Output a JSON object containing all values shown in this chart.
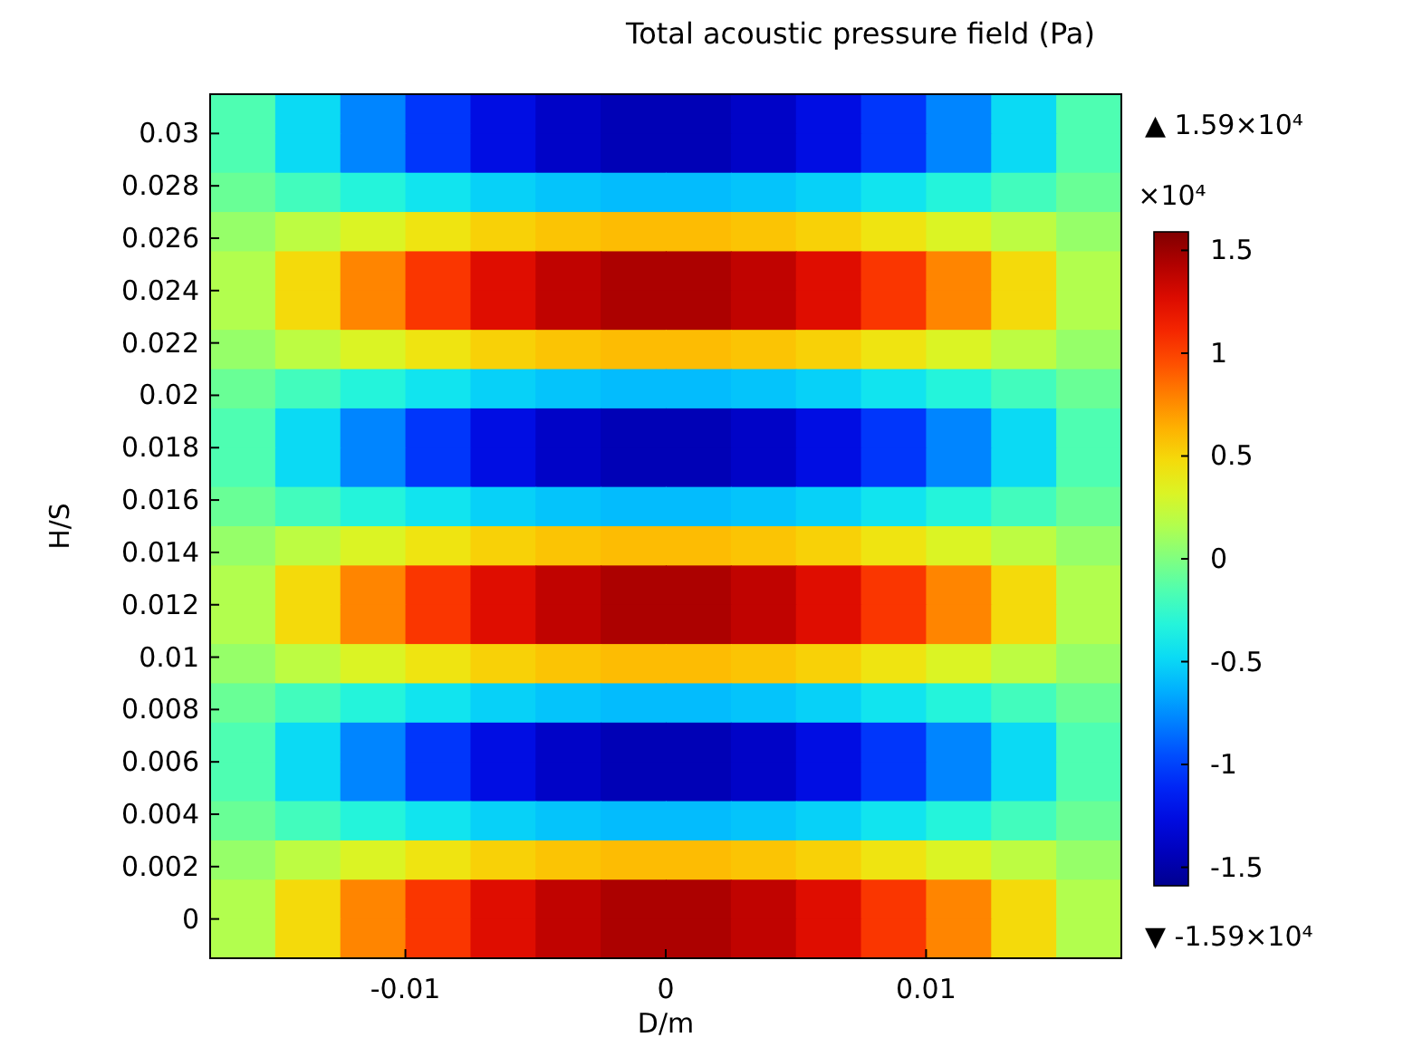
{
  "chart_data": {
    "type": "heatmap",
    "title": "Total acoustic pressure field (Pa)",
    "xlabel": "D/m",
    "ylabel": "H/S",
    "clabel": "×10⁴",
    "annotations": [
      "▲ 1.59×10⁴",
      "▼ -1.59×10⁴"
    ],
    "xlim": [
      -0.0175,
      0.0175
    ],
    "ylim": [
      -0.0015,
      0.0315
    ],
    "xticks": [
      -0.01,
      0,
      0.01
    ],
    "yticks": [
      0,
      0.002,
      0.004,
      0.006,
      0.008,
      0.01,
      0.012,
      0.014,
      0.016,
      0.018,
      0.02,
      0.022,
      0.024,
      0.026,
      0.028,
      0.03
    ],
    "clim": [
      -1.59,
      1.59
    ],
    "cticks": [
      -1.5,
      -1,
      -0.5,
      0,
      0.5,
      1,
      1.5
    ],
    "cells": [
      [
        -0.16,
        -0.48,
        -0.78,
        -1.04,
        -1.25,
        -1.38,
        -1.45,
        -1.45,
        -1.38,
        -1.25,
        -1.04,
        -0.78,
        -0.48,
        -0.16
      ],
      [
        -0.16,
        -0.48,
        -0.78,
        -1.04,
        -1.25,
        -1.38,
        -1.45,
        -1.45,
        -1.38,
        -1.25,
        -1.04,
        -0.78,
        -0.48,
        -0.16
      ],
      [
        -0.07,
        -0.2,
        -0.32,
        -0.43,
        -0.52,
        -0.57,
        -0.6,
        -0.6,
        -0.57,
        -0.52,
        -0.43,
        -0.32,
        -0.2,
        -0.07
      ],
      [
        0.07,
        0.2,
        0.32,
        0.43,
        0.52,
        0.57,
        0.6,
        0.6,
        0.57,
        0.52,
        0.43,
        0.32,
        0.2,
        0.07
      ],
      [
        0.16,
        0.48,
        0.78,
        1.04,
        1.25,
        1.38,
        1.45,
        1.45,
        1.38,
        1.25,
        1.04,
        0.78,
        0.48,
        0.16
      ],
      [
        0.16,
        0.48,
        0.78,
        1.04,
        1.25,
        1.38,
        1.45,
        1.45,
        1.38,
        1.25,
        1.04,
        0.78,
        0.48,
        0.16
      ],
      [
        0.07,
        0.2,
        0.32,
        0.43,
        0.52,
        0.57,
        0.6,
        0.6,
        0.57,
        0.52,
        0.43,
        0.32,
        0.2,
        0.07
      ],
      [
        -0.07,
        -0.2,
        -0.32,
        -0.43,
        -0.52,
        -0.57,
        -0.6,
        -0.6,
        -0.57,
        -0.52,
        -0.43,
        -0.32,
        -0.2,
        -0.07
      ],
      [
        -0.16,
        -0.48,
        -0.78,
        -1.04,
        -1.25,
        -1.38,
        -1.45,
        -1.45,
        -1.38,
        -1.25,
        -1.04,
        -0.78,
        -0.48,
        -0.16
      ],
      [
        -0.16,
        -0.48,
        -0.78,
        -1.04,
        -1.25,
        -1.38,
        -1.45,
        -1.45,
        -1.38,
        -1.25,
        -1.04,
        -0.78,
        -0.48,
        -0.16
      ],
      [
        -0.07,
        -0.2,
        -0.32,
        -0.43,
        -0.52,
        -0.57,
        -0.6,
        -0.6,
        -0.57,
        -0.52,
        -0.43,
        -0.32,
        -0.2,
        -0.07
      ],
      [
        0.07,
        0.2,
        0.32,
        0.43,
        0.52,
        0.57,
        0.6,
        0.6,
        0.57,
        0.52,
        0.43,
        0.32,
        0.2,
        0.07
      ],
      [
        0.16,
        0.48,
        0.78,
        1.04,
        1.25,
        1.38,
        1.45,
        1.45,
        1.38,
        1.25,
        1.04,
        0.78,
        0.48,
        0.16
      ],
      [
        0.16,
        0.48,
        0.78,
        1.04,
        1.25,
        1.38,
        1.45,
        1.45,
        1.38,
        1.25,
        1.04,
        0.78,
        0.48,
        0.16
      ],
      [
        0.07,
        0.2,
        0.32,
        0.43,
        0.52,
        0.57,
        0.6,
        0.6,
        0.57,
        0.52,
        0.43,
        0.32,
        0.2,
        0.07
      ],
      [
        -0.07,
        -0.2,
        -0.32,
        -0.43,
        -0.52,
        -0.57,
        -0.6,
        -0.6,
        -0.57,
        -0.52,
        -0.43,
        -0.32,
        -0.2,
        -0.07
      ],
      [
        -0.16,
        -0.48,
        -0.78,
        -1.04,
        -1.25,
        -1.38,
        -1.45,
        -1.45,
        -1.38,
        -1.25,
        -1.04,
        -0.78,
        -0.48,
        -0.16
      ],
      [
        -0.16,
        -0.48,
        -0.78,
        -1.04,
        -1.25,
        -1.38,
        -1.45,
        -1.45,
        -1.38,
        -1.25,
        -1.04,
        -0.78,
        -0.48,
        -0.16
      ],
      [
        -0.07,
        -0.2,
        -0.32,
        -0.43,
        -0.52,
        -0.57,
        -0.6,
        -0.6,
        -0.57,
        -0.52,
        -0.43,
        -0.32,
        -0.2,
        -0.07
      ],
      [
        0.07,
        0.2,
        0.32,
        0.43,
        0.52,
        0.57,
        0.6,
        0.6,
        0.57,
        0.52,
        0.43,
        0.32,
        0.2,
        0.07
      ],
      [
        0.16,
        0.48,
        0.78,
        1.04,
        1.25,
        1.38,
        1.45,
        1.45,
        1.38,
        1.25,
        1.04,
        0.78,
        0.48,
        0.16
      ],
      [
        0.16,
        0.48,
        0.78,
        1.04,
        1.25,
        1.38,
        1.45,
        1.45,
        1.38,
        1.25,
        1.04,
        0.78,
        0.48,
        0.16
      ]
    ]
  }
}
